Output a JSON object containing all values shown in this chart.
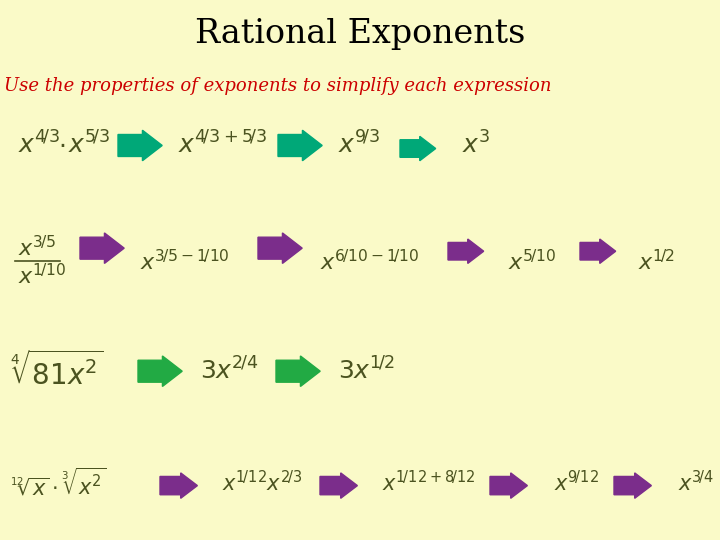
{
  "title": "Rational Exponents",
  "subtitle": "Use the properties of exponents to simplify each expression",
  "title_bg": "#29C5F6",
  "title_color": "#000000",
  "subtitle_color": "#CC0000",
  "body_bg": "#FAFAC8",
  "teal": "#00A878",
  "green3": "#22AA44",
  "purple": "#7B2D8B",
  "dark_text": "#4B5320",
  "figsize": [
    7.2,
    5.4
  ],
  "dpi": 100
}
